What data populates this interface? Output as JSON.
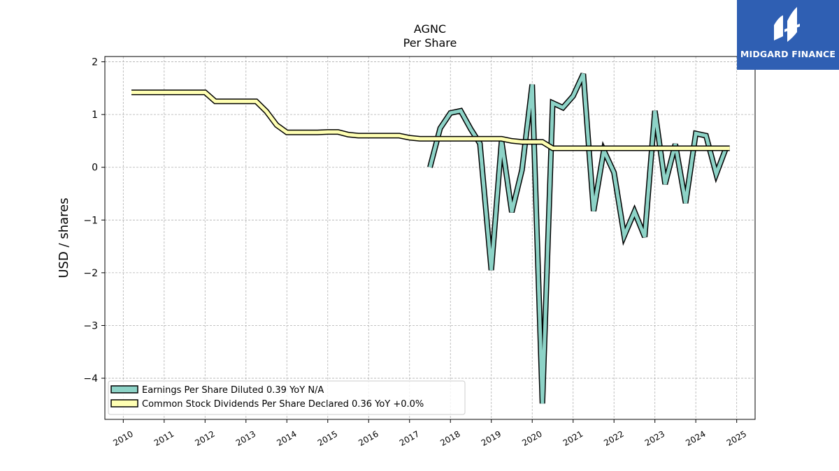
{
  "brand": {
    "name": "MIDGARD FINANCE",
    "bg": "#2f5fb3"
  },
  "chart_data": {
    "type": "line",
    "title": "AGNC",
    "subtitle": "Per  Share",
    "ylabel": "USD / shares",
    "xlabel": "",
    "xlim": [
      2009.55,
      2025.45
    ],
    "ylim": [
      -4.78,
      2.1
    ],
    "grid": true,
    "legend_position": "lower-left",
    "x_ticks": [
      "2010",
      "2011",
      "2012",
      "2013",
      "2014",
      "2015",
      "2016",
      "2017",
      "2018",
      "2019",
      "2020",
      "2021",
      "2022",
      "2023",
      "2024",
      "2025"
    ],
    "y_ticks": [
      {
        "value": 2,
        "label": "2"
      },
      {
        "value": 1,
        "label": "1"
      },
      {
        "value": 0,
        "label": "0"
      },
      {
        "value": -1,
        "label": "−1"
      },
      {
        "value": -2,
        "label": "−2"
      },
      {
        "value": -3,
        "label": "−3"
      },
      {
        "value": -4,
        "label": "−4"
      }
    ],
    "series": [
      {
        "name": "Earnings Per Share Diluted  0.39 YoY N/A",
        "color": "#8dd3c7",
        "points": [
          [
            2017.5,
            0.0
          ],
          [
            2017.75,
            0.74
          ],
          [
            2018.0,
            1.03
          ],
          [
            2018.25,
            1.07
          ],
          [
            2018.5,
            0.72
          ],
          [
            2018.72,
            0.45
          ],
          [
            2019.0,
            -1.95
          ],
          [
            2019.25,
            0.5
          ],
          [
            2019.5,
            -0.85
          ],
          [
            2019.75,
            -0.05
          ],
          [
            2020.0,
            1.57
          ],
          [
            2020.25,
            -4.48
          ],
          [
            2020.5,
            1.22
          ],
          [
            2020.75,
            1.13
          ],
          [
            2021.0,
            1.35
          ],
          [
            2021.25,
            1.77
          ],
          [
            2021.5,
            -0.83
          ],
          [
            2021.75,
            0.32
          ],
          [
            2022.0,
            -0.1
          ],
          [
            2022.25,
            -1.3
          ],
          [
            2022.5,
            -0.84
          ],
          [
            2022.75,
            -1.32
          ],
          [
            2023.0,
            1.07
          ],
          [
            2023.25,
            -0.32
          ],
          [
            2023.5,
            0.44
          ],
          [
            2023.75,
            -0.68
          ],
          [
            2024.0,
            0.64
          ],
          [
            2024.25,
            0.6
          ],
          [
            2024.5,
            -0.13
          ],
          [
            2024.75,
            0.39
          ]
        ]
      },
      {
        "name": "Common Stock Dividends Per Share Declared  0.36 YoY +0.0%",
        "color": "#ffffb3",
        "points": [
          [
            2010.2,
            1.42
          ],
          [
            2012.0,
            1.42
          ],
          [
            2012.25,
            1.25
          ],
          [
            2013.25,
            1.25
          ],
          [
            2013.5,
            1.06
          ],
          [
            2013.75,
            0.8
          ],
          [
            2014.0,
            0.66
          ],
          [
            2014.75,
            0.66
          ],
          [
            2015.0,
            0.67
          ],
          [
            2015.25,
            0.67
          ],
          [
            2015.5,
            0.62
          ],
          [
            2015.75,
            0.6
          ],
          [
            2016.75,
            0.6
          ],
          [
            2017.0,
            0.56
          ],
          [
            2017.25,
            0.54
          ],
          [
            2018.0,
            0.54
          ],
          [
            2019.25,
            0.54
          ],
          [
            2019.5,
            0.5
          ],
          [
            2019.75,
            0.48
          ],
          [
            2020.25,
            0.48
          ],
          [
            2020.5,
            0.36
          ],
          [
            2024.83,
            0.36
          ]
        ]
      }
    ]
  }
}
